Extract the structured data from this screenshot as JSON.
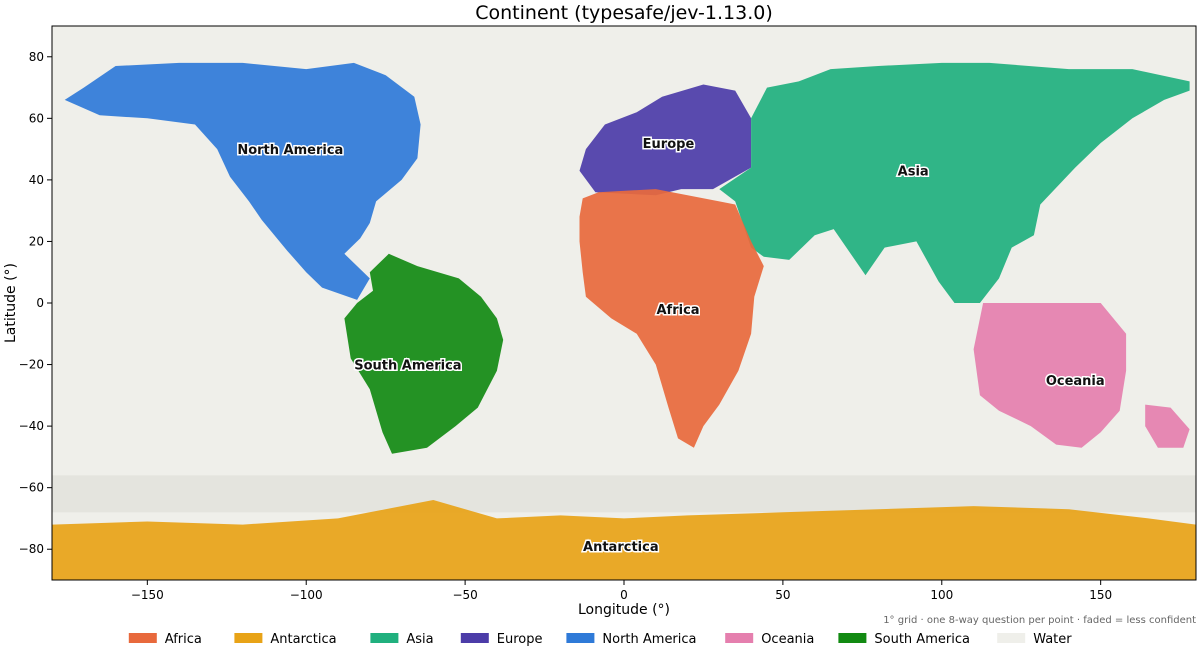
{
  "chart_data": {
    "type": "heatmap",
    "title": "Continent (typesafe/jev-1.13.0)",
    "xlabel": "Longitude (°)",
    "ylabel": "Latitude (°)",
    "xlim": [
      -180,
      180
    ],
    "ylim": [
      -90,
      90
    ],
    "x_ticks": [
      -150,
      -100,
      -50,
      0,
      50,
      100,
      150
    ],
    "x_tick_labels": [
      "−150",
      "−100",
      "−50",
      "0",
      "50",
      "100",
      "150"
    ],
    "y_ticks": [
      -80,
      -60,
      -40,
      -20,
      0,
      20,
      40,
      60,
      80
    ],
    "y_tick_labels": [
      "−80",
      "−60",
      "−40",
      "−20",
      "0",
      "20",
      "40",
      "60",
      "80"
    ],
    "grid": false,
    "legend_position": "bottom",
    "footnote": "1° grid · one 8-way question per point · faded = less confident",
    "classes": [
      {
        "name": "Africa",
        "color": "#e8693c"
      },
      {
        "name": "Antarctica",
        "color": "#e8a317"
      },
      {
        "name": "Asia",
        "color": "#20b07e"
      },
      {
        "name": "Europe",
        "color": "#4c3ca8"
      },
      {
        "name": "North America",
        "color": "#2f7ad8"
      },
      {
        "name": "Oceania",
        "color": "#e57fae"
      },
      {
        "name": "South America",
        "color": "#128a12"
      },
      {
        "name": "Water",
        "color": "#efefea"
      }
    ],
    "region_labels": [
      {
        "text": "North America",
        "lon": -105,
        "lat": 50
      },
      {
        "text": "Europe",
        "lon": 14,
        "lat": 52
      },
      {
        "text": "Asia",
        "lon": 91,
        "lat": 43
      },
      {
        "text": "Africa",
        "lon": 17,
        "lat": -2
      },
      {
        "text": "South America",
        "lon": -68,
        "lat": -20
      },
      {
        "text": "Oceania",
        "lon": 142,
        "lat": -25
      },
      {
        "text": "Antarctica",
        "lon": -1,
        "lat": -79
      }
    ]
  }
}
